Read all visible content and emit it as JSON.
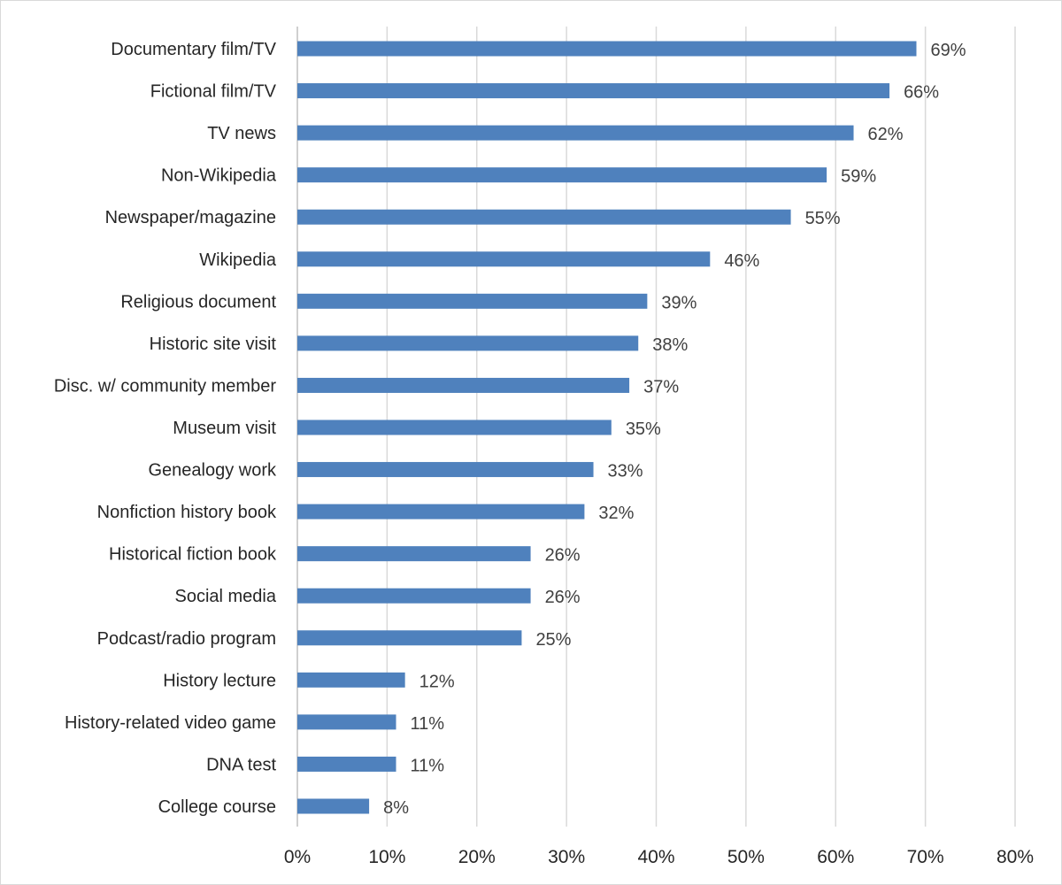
{
  "chart_data": {
    "type": "bar",
    "orientation": "horizontal",
    "title": "",
    "xlabel": "",
    "ylabel": "",
    "xlim": [
      0,
      80
    ],
    "x_ticks": [
      "0%",
      "10%",
      "20%",
      "30%",
      "40%",
      "50%",
      "60%",
      "70%",
      "80%"
    ],
    "grid": "vertical",
    "legend": "none",
    "bar_color": "#4f81bd",
    "categories": [
      "Documentary film/TV",
      "Fictional film/TV",
      "TV news",
      "Non-Wikipedia",
      "Newspaper/magazine",
      "Wikipedia",
      "Religious document",
      "Historic site visit",
      "Disc. w/ community member",
      "Museum visit",
      "Genealogy work",
      "Nonfiction history book",
      "Historical fiction book",
      "Social media",
      "Podcast/radio program",
      "History lecture",
      "History-related video game",
      "DNA test",
      "College course"
    ],
    "values": [
      69,
      66,
      62,
      59,
      55,
      46,
      39,
      38,
      37,
      35,
      33,
      32,
      26,
      26,
      25,
      12,
      11,
      11,
      8
    ],
    "data_labels": [
      "69%",
      "66%",
      "62%",
      "59%",
      "55%",
      "46%",
      "39%",
      "38%",
      "37%",
      "35%",
      "33%",
      "32%",
      "26%",
      "26%",
      "25%",
      "12%",
      "11%",
      "11%",
      "8%"
    ]
  }
}
